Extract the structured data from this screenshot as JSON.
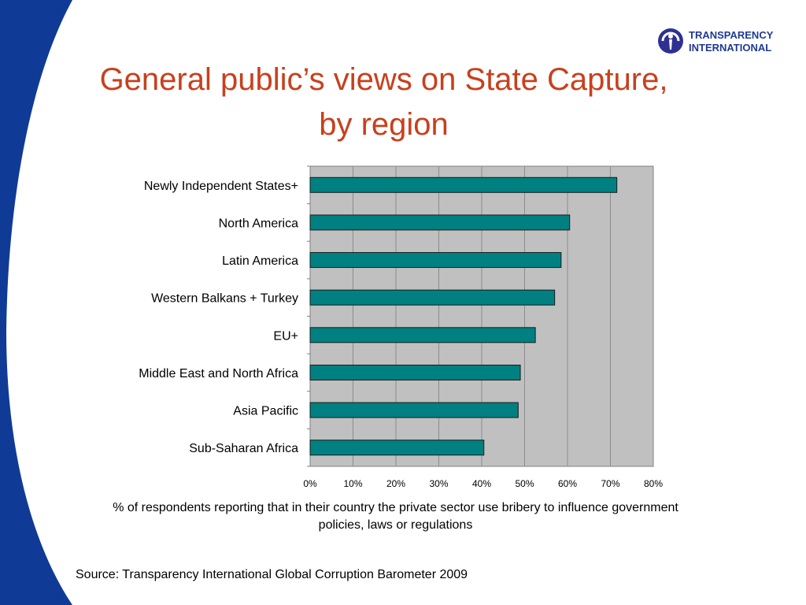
{
  "title_line_1": "General public’s views on State Capture,",
  "title_line_2": "by region",
  "logo": {
    "line_1": "TRANSPARENCY",
    "line_2": "INTERNATIONAL",
    "icon": "transparency-international-logo-icon"
  },
  "colors": {
    "title": "#C8401C",
    "bar_fill": "#008080",
    "plot_bg": "#C0C0C0",
    "deco_blue": "#0F3A96",
    "logo_blue": "#1F3A93"
  },
  "chart_data": {
    "type": "bar",
    "orientation": "horizontal",
    "categories": [
      "Newly Independent States+",
      "North America",
      "Latin America",
      "Western Balkans + Turkey",
      "EU+",
      "Middle East and North Africa",
      "Asia Pacific",
      "Sub-Saharan Africa"
    ],
    "values": [
      71.5,
      60.5,
      58.5,
      57,
      52.5,
      49,
      48.5,
      40.5
    ],
    "xlim": [
      0,
      80
    ],
    "x_ticks": [
      "0%",
      "10%",
      "20%",
      "30%",
      "40%",
      "50%",
      "60%",
      "70%",
      "80%"
    ],
    "grid": true,
    "legend": "none",
    "xlabel": "%  of respondents reporting that in their country the private sector use bribery to influence government policies, laws or regulations"
  },
  "source": "Source: Transparency International Global Corruption Barometer 2009"
}
